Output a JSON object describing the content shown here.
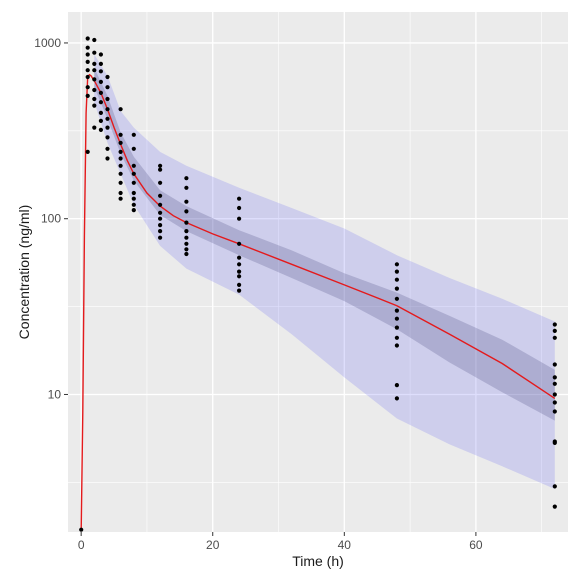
{
  "chart_data": {
    "type": "scatter",
    "title": "",
    "xlabel": "Time (h)",
    "ylabel": "Concentration (ng/ml)",
    "x_scale": "linear",
    "y_scale": "log10",
    "xlim": [
      -2,
      74
    ],
    "ylim": [
      1.65,
      1500
    ],
    "x_ticks": [
      0,
      20,
      40,
      60
    ],
    "y_ticks": [
      10,
      100,
      1000
    ],
    "x_tick_labels": [
      "0",
      "20",
      "40",
      "60"
    ],
    "y_tick_labels": [
      "10",
      "100",
      "1000"
    ],
    "grid": true,
    "legend": "none",
    "colors": {
      "panel": "#ebebeb",
      "grid": "#ffffff",
      "points": "#000000",
      "median_line": "#e41a1c",
      "outer_band": "#6b6bf0",
      "inner_band": "#4b4b80"
    },
    "series": [
      {
        "type": "scatter",
        "points": [
          [
            0,
            1.7
          ],
          [
            1,
            1060
          ],
          [
            1,
            940
          ],
          [
            1,
            860
          ],
          [
            1,
            780
          ],
          [
            1,
            700
          ],
          [
            1,
            640
          ],
          [
            1,
            560
          ],
          [
            1,
            500
          ],
          [
            1,
            240
          ],
          [
            2,
            1040
          ],
          [
            2,
            880
          ],
          [
            2,
            760
          ],
          [
            2,
            700
          ],
          [
            2,
            620
          ],
          [
            2,
            540
          ],
          [
            2,
            480
          ],
          [
            2,
            440
          ],
          [
            2,
            330
          ],
          [
            3,
            860
          ],
          [
            3,
            760
          ],
          [
            3,
            690
          ],
          [
            3,
            600
          ],
          [
            3,
            520
          ],
          [
            3,
            460
          ],
          [
            3,
            400
          ],
          [
            3,
            360
          ],
          [
            3,
            320
          ],
          [
            4,
            640
          ],
          [
            4,
            560
          ],
          [
            4,
            480
          ],
          [
            4,
            420
          ],
          [
            4,
            370
          ],
          [
            4,
            330
          ],
          [
            4,
            290
          ],
          [
            4,
            250
          ],
          [
            4,
            220
          ],
          [
            6,
            420
          ],
          [
            6,
            300
          ],
          [
            6,
            270
          ],
          [
            6,
            240
          ],
          [
            6,
            220
          ],
          [
            6,
            200
          ],
          [
            6,
            180
          ],
          [
            6,
            160
          ],
          [
            6,
            140
          ],
          [
            6,
            130
          ],
          [
            8,
            300
          ],
          [
            8,
            250
          ],
          [
            8,
            200
          ],
          [
            8,
            180
          ],
          [
            8,
            160
          ],
          [
            8,
            140
          ],
          [
            8,
            130
          ],
          [
            8,
            120
          ],
          [
            8,
            112
          ],
          [
            12,
            200
          ],
          [
            12,
            190
          ],
          [
            12,
            160
          ],
          [
            12,
            135
          ],
          [
            12,
            120
          ],
          [
            12,
            108
          ],
          [
            12,
            100
          ],
          [
            12,
            92
          ],
          [
            12,
            85
          ],
          [
            12,
            78
          ],
          [
            16,
            170
          ],
          [
            16,
            150
          ],
          [
            16,
            125
          ],
          [
            16,
            110
          ],
          [
            16,
            95
          ],
          [
            16,
            85
          ],
          [
            16,
            78
          ],
          [
            16,
            72
          ],
          [
            16,
            67
          ],
          [
            16,
            63
          ],
          [
            24,
            130
          ],
          [
            24,
            115
          ],
          [
            24,
            100
          ],
          [
            24,
            72
          ],
          [
            24,
            60
          ],
          [
            24,
            55
          ],
          [
            24,
            50
          ],
          [
            24,
            47
          ],
          [
            24,
            42
          ],
          [
            24,
            39
          ],
          [
            48,
            55
          ],
          [
            48,
            50
          ],
          [
            48,
            45
          ],
          [
            48,
            40
          ],
          [
            48,
            35
          ],
          [
            48,
            30
          ],
          [
            48,
            27
          ],
          [
            48,
            24
          ],
          [
            48,
            21
          ],
          [
            48,
            19
          ],
          [
            48,
            11.3
          ],
          [
            48,
            9.5
          ],
          [
            72,
            25
          ],
          [
            72,
            23
          ],
          [
            72,
            21
          ],
          [
            72,
            14.8
          ],
          [
            72,
            12.5
          ],
          [
            72,
            11.5
          ],
          [
            72,
            10
          ],
          [
            72,
            9
          ],
          [
            72,
            8
          ],
          [
            72,
            5.4
          ],
          [
            72,
            5.3
          ],
          [
            72,
            3
          ],
          [
            72,
            2.3
          ]
        ]
      },
      {
        "type": "line",
        "x": [
          0,
          0.25,
          0.5,
          0.75,
          1,
          1.25,
          1.5,
          2,
          3,
          4,
          5,
          6,
          7,
          8,
          10,
          12,
          14,
          16,
          20,
          24,
          32,
          40,
          48,
          56,
          64,
          72
        ],
        "y": [
          1.7,
          8,
          80,
          400,
          640,
          660,
          650,
          610,
          520,
          420,
          330,
          265,
          215,
          180,
          140,
          118,
          104,
          95,
          82,
          72,
          55,
          42,
          32,
          22,
          15,
          9.5
        ]
      },
      {
        "type": "band",
        "x": [
          2,
          4,
          6,
          8,
          12,
          16,
          24,
          32,
          40,
          48,
          56,
          64,
          72
        ],
        "lower": [
          460,
          270,
          180,
          120,
          70,
          52,
          37,
          22,
          12.5,
          7.3,
          5.2,
          3.9,
          2.9
        ],
        "upper": [
          860,
          650,
          410,
          330,
          240,
          200,
          150,
          115,
          88,
          62,
          46,
          35,
          26
        ]
      },
      {
        "type": "band",
        "x": [
          2,
          4,
          6,
          8,
          12,
          16,
          24,
          32,
          40,
          48,
          56,
          64,
          72
        ],
        "lower": [
          560,
          370,
          235,
          165,
          105,
          85,
          62,
          46,
          34,
          23.5,
          15.2,
          10.3,
          7.1
        ],
        "upper": [
          720,
          500,
          310,
          225,
          145,
          118,
          86,
          66,
          49,
          38,
          28,
          20.5,
          13.8
        ]
      }
    ]
  }
}
